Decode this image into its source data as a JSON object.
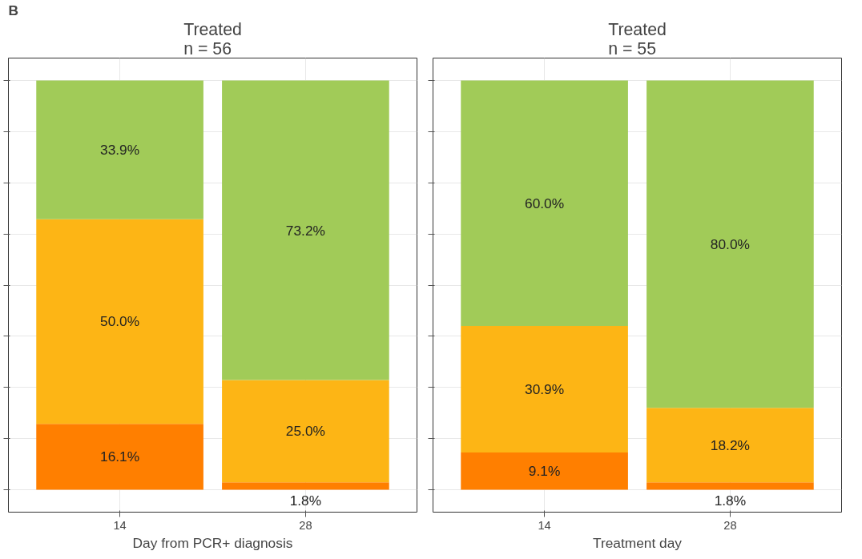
{
  "chart_data": [
    {
      "type": "bar",
      "stacked": true,
      "title": "Treated\nn = 56",
      "xlabel": "Day from PCR+ diagnosis",
      "annotations": [
        "B"
      ],
      "categories": [
        "14",
        "28"
      ],
      "ylim": [
        -5.5,
        105.5
      ],
      "yticks": [
        {
          "value": 0,
          "label": null
        },
        {
          "value": 12.5,
          "label": null
        },
        {
          "value": 25,
          "label": null
        },
        {
          "value": 37.5,
          "label": null
        },
        {
          "value": 50,
          "label": null
        },
        {
          "value": 62.5,
          "label": null
        },
        {
          "value": 75,
          "label": null
        },
        {
          "value": 87.5,
          "label": null
        },
        {
          "value": 100,
          "label": null
        }
      ],
      "tick_labels": "x",
      "grid": true,
      "series": [
        {
          "color": "#ff7f00",
          "values": [
            16.1,
            1.8
          ],
          "value_labels": [
            "16.1%",
            "1.8%"
          ]
        },
        {
          "color": "#fdb515",
          "values": [
            50.0,
            25.0
          ],
          "value_labels": [
            "50.0%",
            "25.0%"
          ]
        },
        {
          "color": "#a1cb58",
          "values": [
            33.9,
            73.2
          ],
          "value_labels": [
            "33.9%",
            "73.2%"
          ]
        }
      ]
    },
    {
      "type": "bar",
      "stacked": true,
      "title": "Treated\nn = 55",
      "xlabel": "Treatment day",
      "categories": [
        "14",
        "28"
      ],
      "ylim": [
        -5.5,
        105.5
      ],
      "yticks": [
        {
          "value": 0,
          "label": null
        },
        {
          "value": 12.5,
          "label": null
        },
        {
          "value": 25,
          "label": null
        },
        {
          "value": 37.5,
          "label": null
        },
        {
          "value": 50,
          "label": null
        },
        {
          "value": 62.5,
          "label": null
        },
        {
          "value": 75,
          "label": null
        },
        {
          "value": 87.5,
          "label": null
        },
        {
          "value": 100,
          "label": null
        }
      ],
      "tick_labels": "x",
      "grid": true,
      "series": [
        {
          "color": "#ff7f00",
          "values": [
            9.1,
            1.8
          ],
          "value_labels": [
            "9.1%",
            "1.8%"
          ]
        },
        {
          "color": "#fdb515",
          "values": [
            30.9,
            18.2
          ],
          "value_labels": [
            "30.9%",
            "18.2%"
          ]
        },
        {
          "color": "#a1cb58",
          "values": [
            60.0,
            80.0
          ],
          "value_labels": [
            "60.0%",
            "80.0%"
          ]
        }
      ]
    }
  ]
}
